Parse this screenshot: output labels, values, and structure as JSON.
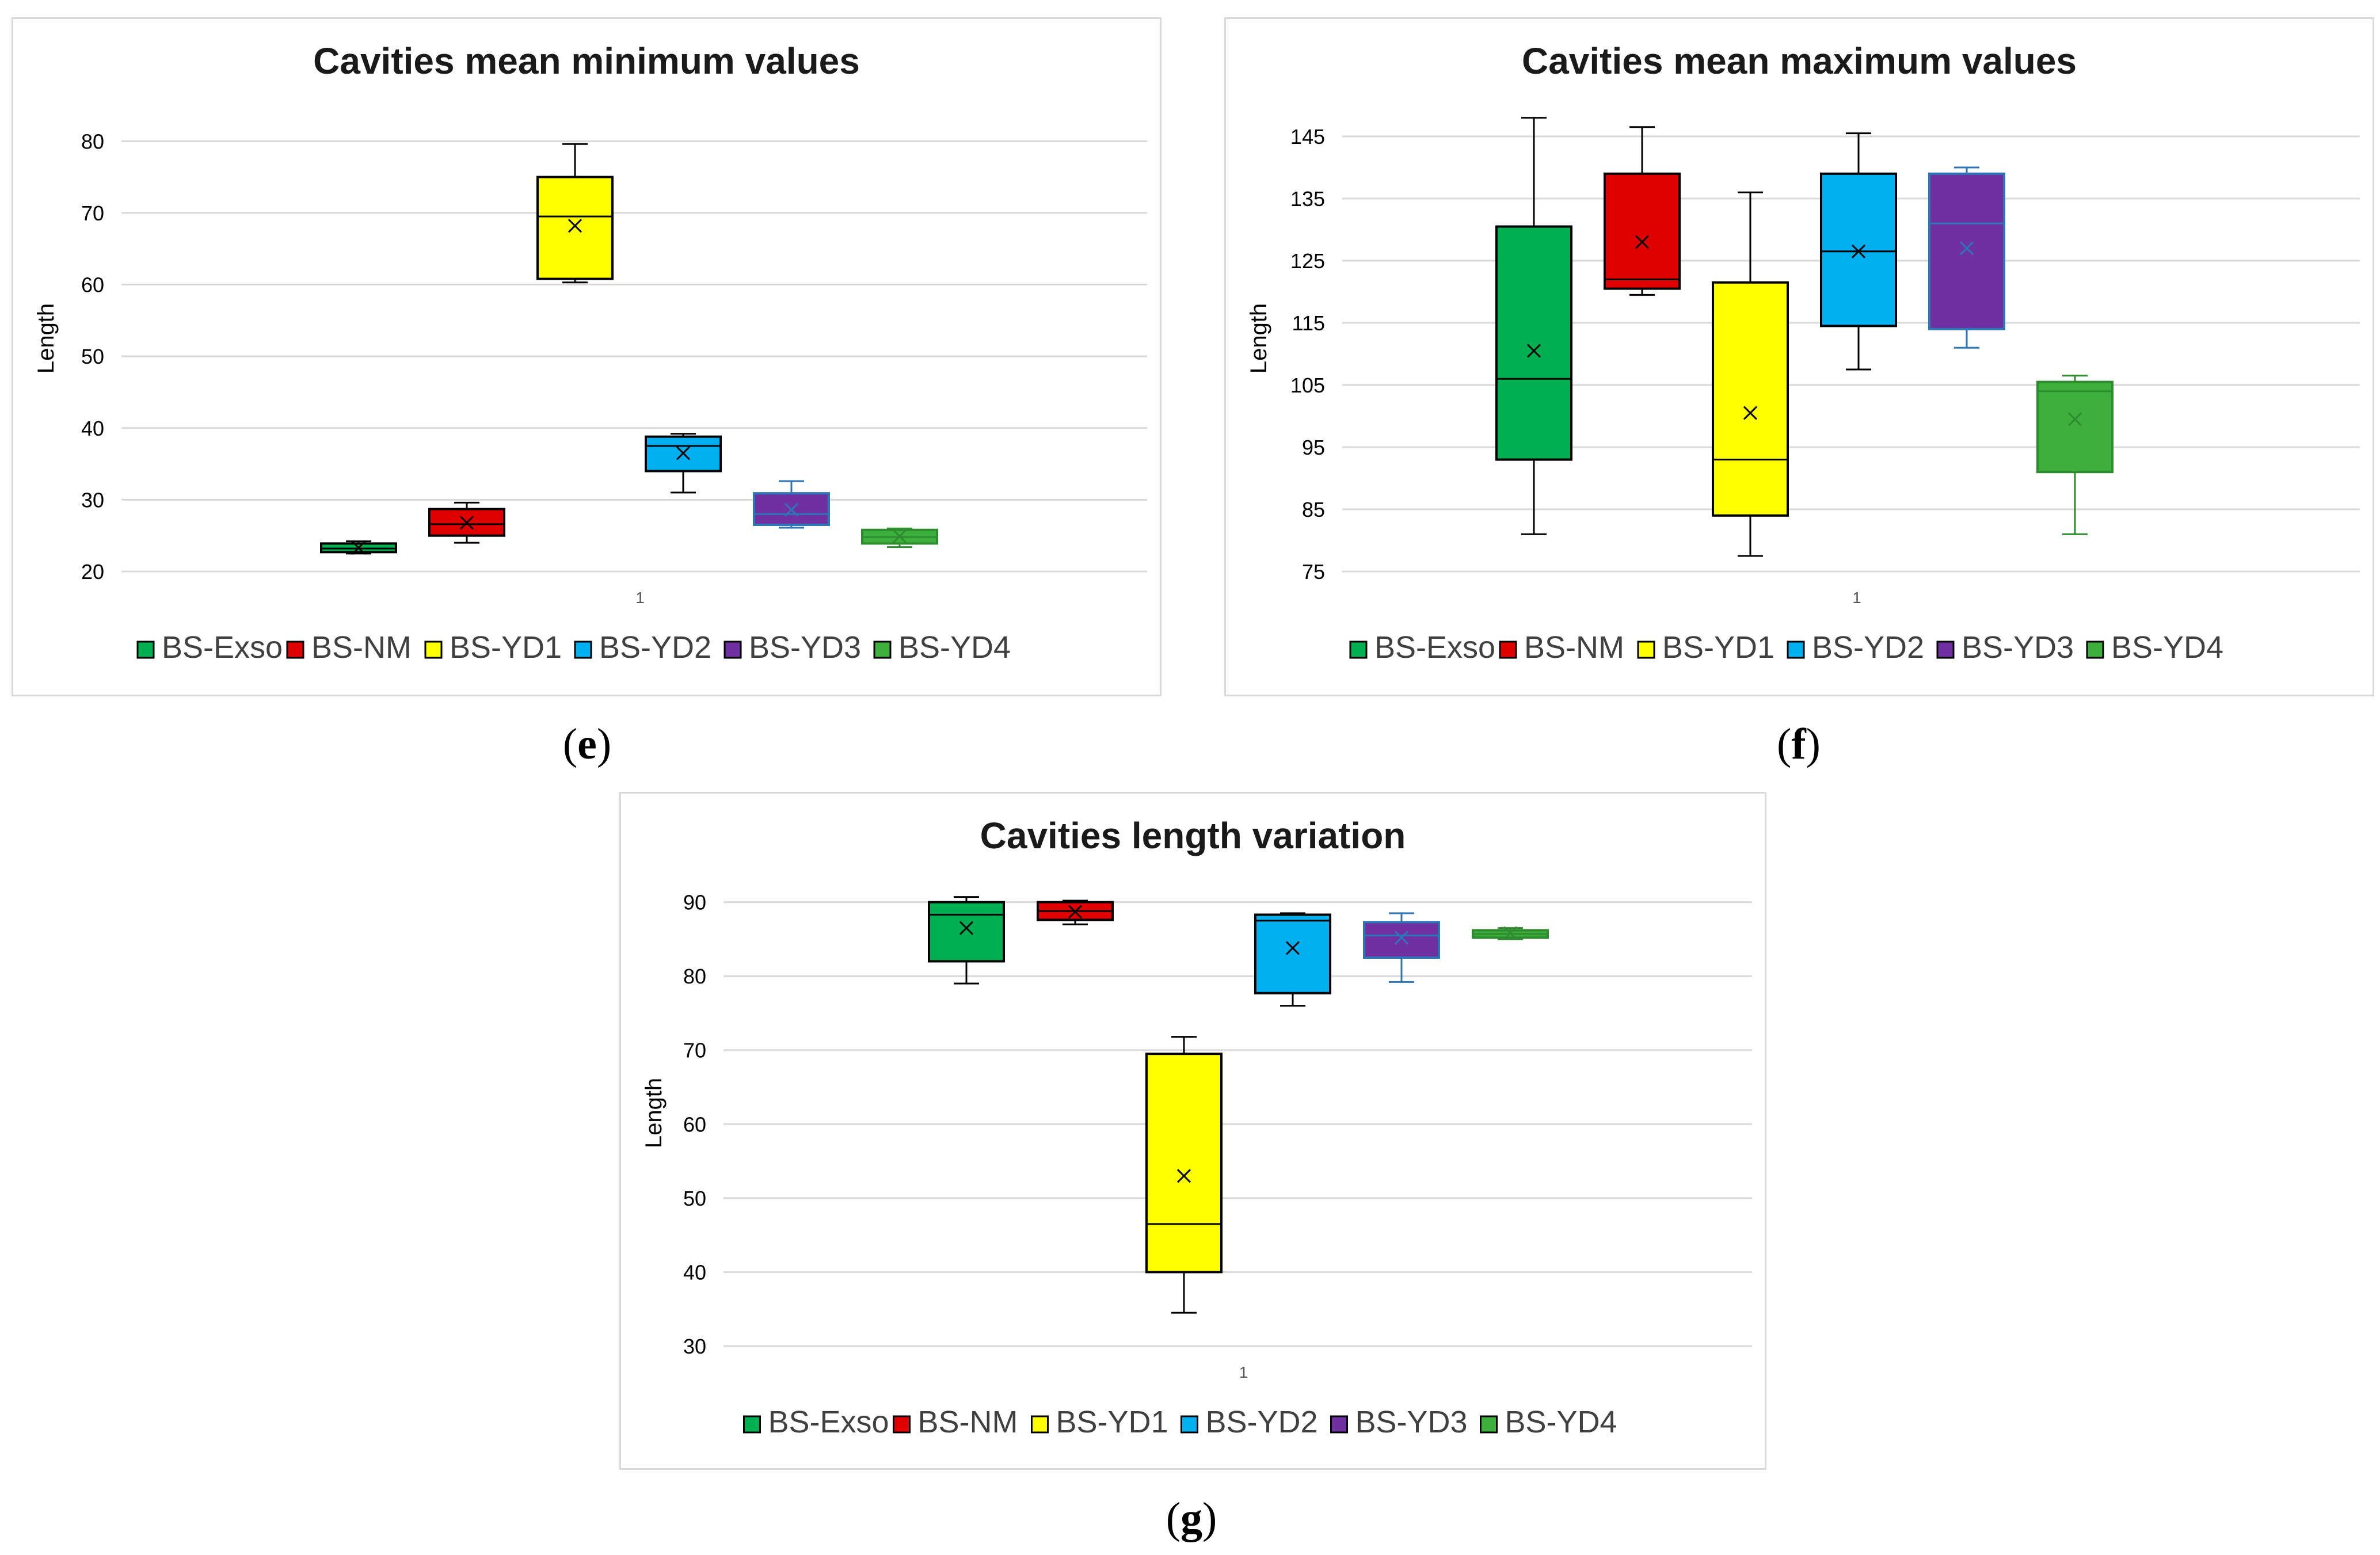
{
  "series_colors": {
    "BS-Exso": "#00b050",
    "BS-NM": "#e00000",
    "BS-YD1": "#ffff00",
    "BS-YD2": "#00b0f0",
    "BS-YD3": "#7030a0",
    "BS-YD4": "#3daf3d"
  },
  "chart_data": [
    {
      "panel_label": "e",
      "type": "box",
      "title": "Cavities mean minimum values",
      "ylabel": "Length",
      "xlabel": "",
      "categories": [
        "1"
      ],
      "ylim": [
        20,
        85
      ],
      "yticks": [
        20,
        30,
        40,
        50,
        60,
        70,
        80
      ],
      "grid": true,
      "legend": "bottom",
      "series": [
        {
          "name": "BS-Exso",
          "min": 22.5,
          "q1": 22.7,
          "median": 23.2,
          "q3": 23.9,
          "max": 24.2,
          "mean": 23.3
        },
        {
          "name": "BS-NM",
          "min": 24.0,
          "q1": 25.0,
          "median": 26.6,
          "q3": 28.7,
          "max": 29.6,
          "mean": 26.8
        },
        {
          "name": "BS-YD1",
          "min": 60.3,
          "q1": 60.8,
          "median": 69.5,
          "q3": 75.0,
          "max": 79.6,
          "mean": 68.2
        },
        {
          "name": "BS-YD2",
          "min": 31.0,
          "q1": 34.0,
          "median": 37.5,
          "q3": 38.8,
          "max": 39.2,
          "mean": 36.5
        },
        {
          "name": "BS-YD3",
          "min": 26.1,
          "q1": 26.5,
          "median": 28.0,
          "q3": 30.9,
          "max": 32.6,
          "mean": 28.6
        },
        {
          "name": "BS-YD4",
          "min": 23.4,
          "q1": 23.9,
          "median": 24.8,
          "q3": 25.8,
          "max": 26.0,
          "mean": 24.9
        }
      ]
    },
    {
      "panel_label": "f",
      "type": "box",
      "title": "Cavities mean maximum values",
      "ylabel": "Length",
      "xlabel": "",
      "categories": [
        "1"
      ],
      "ylim": [
        75,
        150
      ],
      "yticks": [
        75,
        85,
        95,
        105,
        115,
        125,
        135,
        145
      ],
      "grid": true,
      "legend": "bottom",
      "series": [
        {
          "name": "BS-Exso",
          "min": 81.0,
          "q1": 93.0,
          "median": 106.0,
          "q3": 130.5,
          "max": 148.0,
          "mean": 110.5
        },
        {
          "name": "BS-NM",
          "min": 119.5,
          "q1": 120.5,
          "median": 122.0,
          "q3": 139.0,
          "max": 146.5,
          "mean": 128.0
        },
        {
          "name": "BS-YD1",
          "min": 77.5,
          "q1": 84.0,
          "median": 93.0,
          "q3": 121.5,
          "max": 136.0,
          "mean": 100.5
        },
        {
          "name": "BS-YD2",
          "min": 107.5,
          "q1": 114.5,
          "median": 126.5,
          "q3": 139.0,
          "max": 145.5,
          "mean": 126.5
        },
        {
          "name": "BS-YD3",
          "min": 111.0,
          "q1": 114.0,
          "median": 131.0,
          "q3": 139.0,
          "max": 140.0,
          "mean": 127.0
        },
        {
          "name": "BS-YD4",
          "min": 81.0,
          "q1": 91.0,
          "median": 104.0,
          "q3": 105.5,
          "max": 106.5,
          "mean": 99.5
        }
      ]
    },
    {
      "panel_label": "g",
      "type": "box",
      "title": "Cavities length variation",
      "ylabel": "Length",
      "xlabel": "",
      "categories": [
        "1"
      ],
      "ylim": [
        30,
        93
      ],
      "yticks": [
        30,
        40,
        50,
        60,
        70,
        80,
        90
      ],
      "grid": true,
      "legend": "bottom",
      "series": [
        {
          "name": "BS-Exso",
          "min": 79.0,
          "q1": 82.0,
          "median": 88.3,
          "q3": 90.0,
          "max": 90.7,
          "mean": 86.5
        },
        {
          "name": "BS-NM",
          "min": 87.0,
          "q1": 87.6,
          "median": 88.8,
          "q3": 90.0,
          "max": 90.2,
          "mean": 88.7
        },
        {
          "name": "BS-YD1",
          "min": 34.5,
          "q1": 40.0,
          "median": 46.5,
          "q3": 69.5,
          "max": 71.8,
          "mean": 53.0
        },
        {
          "name": "BS-YD2",
          "min": 76.0,
          "q1": 77.7,
          "median": 87.5,
          "q3": 88.3,
          "max": 88.5,
          "mean": 83.8
        },
        {
          "name": "BS-YD3",
          "min": 79.2,
          "q1": 82.5,
          "median": 85.5,
          "q3": 87.3,
          "max": 88.5,
          "mean": 85.2
        },
        {
          "name": "BS-YD4",
          "min": 85.0,
          "q1": 85.2,
          "median": 85.7,
          "q3": 86.2,
          "max": 86.5,
          "mean": 85.8
        }
      ]
    }
  ]
}
